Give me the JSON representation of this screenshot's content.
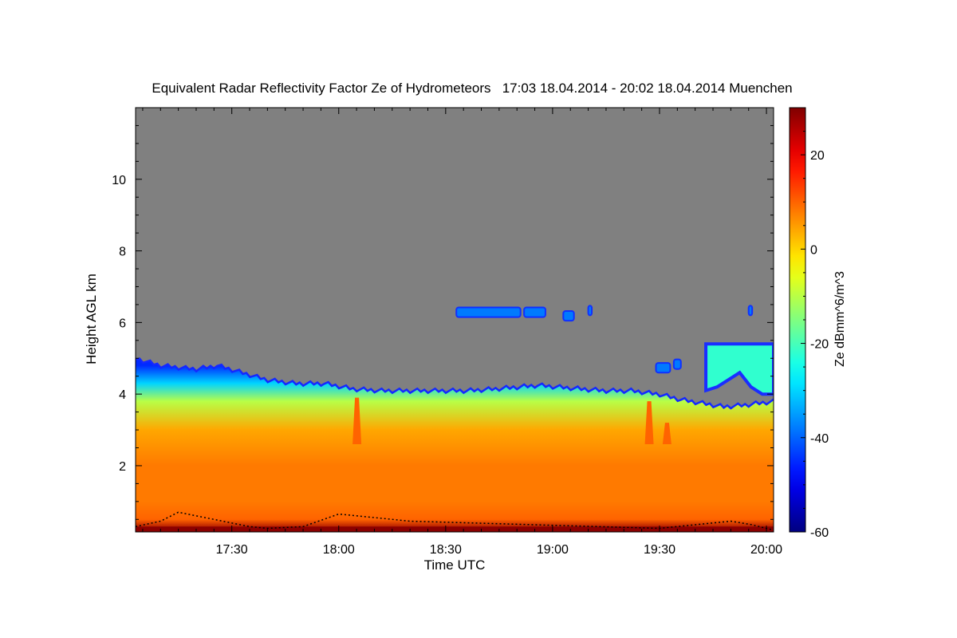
{
  "chart_data": {
    "type": "heatmap",
    "title": "Equivalent Radar Reflectivity Factor Ze of Hydrometeors   17:03 18.04.2014 - 20:02 18.04.2014 Muenchen",
    "xlabel": "Time UTC",
    "ylabel": "Height AGL km",
    "x_ticks": [
      "17:30",
      "18:00",
      "18:30",
      "19:00",
      "19:30",
      "20:00"
    ],
    "x_tick_minutes": [
      1050,
      1080,
      1110,
      1140,
      1170,
      1200
    ],
    "xlim_minutes": [
      1023,
      1202
    ],
    "y_ticks": [
      "2",
      "4",
      "6",
      "8",
      "10"
    ],
    "y_tick_values": [
      2,
      4,
      6,
      8,
      10
    ],
    "ylim": [
      0.15,
      12.0
    ],
    "no_signal_color": "#808080",
    "colorbar": {
      "label": "Ze dBmm^6/m^3",
      "range": [
        -60,
        30
      ],
      "ticks": [
        "20",
        "0",
        "-20",
        "-40",
        "-60"
      ],
      "tick_values": [
        20,
        0,
        -20,
        -40,
        -60
      ],
      "colormap": "jet"
    },
    "cloud_top_km": [
      [
        1023,
        4.9
      ],
      [
        1030,
        4.7
      ],
      [
        1040,
        4.6
      ],
      [
        1046,
        4.7
      ],
      [
        1053,
        4.5
      ],
      [
        1060,
        4.3
      ],
      [
        1068,
        4.2
      ],
      [
        1076,
        4.2
      ],
      [
        1084,
        4.05
      ],
      [
        1092,
        4.0
      ],
      [
        1100,
        4.0
      ],
      [
        1108,
        4.0
      ],
      [
        1116,
        4.0
      ],
      [
        1124,
        4.05
      ],
      [
        1130,
        4.1
      ],
      [
        1136,
        4.15
      ],
      [
        1142,
        4.1
      ],
      [
        1148,
        4.05
      ],
      [
        1155,
        4.0
      ],
      [
        1162,
        4.0
      ],
      [
        1170,
        3.9
      ],
      [
        1176,
        3.75
      ],
      [
        1182,
        3.65
      ],
      [
        1188,
        3.55
      ],
      [
        1194,
        3.6
      ],
      [
        1202,
        3.7
      ]
    ],
    "upper_layer_km": {
      "start_minutes": 1183,
      "base_km": [
        4.1,
        4.2,
        4.4,
        4.6,
        4.2,
        4.0,
        4.0
      ],
      "top_km": 5.4
    },
    "mid_level_cells": [
      {
        "t0": 1113,
        "t1": 1131,
        "h": 6.3
      },
      {
        "t0": 1132,
        "t1": 1138,
        "h": 6.3
      },
      {
        "t0": 1143,
        "t1": 1146,
        "h": 6.2
      },
      {
        "t0": 1150,
        "t1": 1151,
        "h": 6.35
      },
      {
        "t0": 1169,
        "t1": 1173,
        "h": 4.75
      },
      {
        "t0": 1174,
        "t1": 1176,
        "h": 4.85
      },
      {
        "t0": 1195,
        "t1": 1196,
        "h": 6.35
      }
    ],
    "convective_plumes": [
      {
        "t": 1085,
        "top": 3.9
      },
      {
        "t": 1167,
        "top": 3.8
      },
      {
        "t": 1172,
        "top": 3.2
      }
    ],
    "ze_profile_dbz": [
      {
        "h": 0.2,
        "ze": 28
      },
      {
        "h": 0.5,
        "ze": 10
      },
      {
        "h": 1.0,
        "ze": 8
      },
      {
        "h": 2.0,
        "ze": 8
      },
      {
        "h": 3.0,
        "ze": 4
      },
      {
        "h": 3.8,
        "ze": -10
      },
      {
        "h": 4.3,
        "ze": -30
      },
      {
        "h": 4.8,
        "ze": -45
      }
    ],
    "black_trace_km": [
      [
        1023,
        0.3
      ],
      [
        1030,
        0.45
      ],
      [
        1035,
        0.7
      ],
      [
        1040,
        0.6
      ],
      [
        1045,
        0.5
      ],
      [
        1050,
        0.4
      ],
      [
        1055,
        0.3
      ],
      [
        1060,
        0.25
      ],
      [
        1070,
        0.3
      ],
      [
        1080,
        0.65
      ],
      [
        1090,
        0.55
      ],
      [
        1100,
        0.45
      ],
      [
        1170,
        0.25
      ],
      [
        1180,
        0.35
      ],
      [
        1190,
        0.45
      ],
      [
        1196,
        0.35
      ],
      [
        1202,
        0.2
      ]
    ]
  }
}
